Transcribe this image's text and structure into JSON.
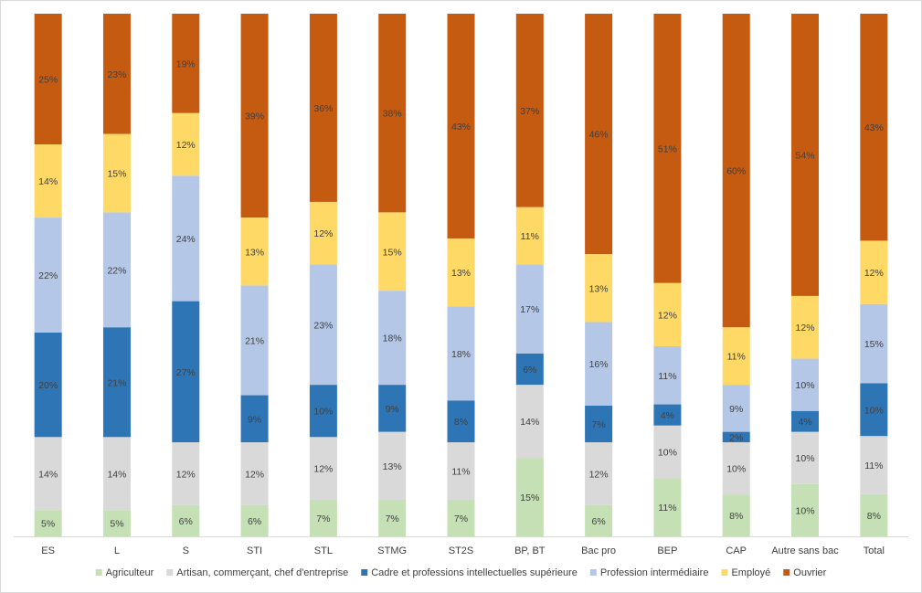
{
  "chart_data": {
    "type": "bar",
    "stacked": "percent",
    "title": "",
    "xlabel": "",
    "ylabel": "",
    "ylim": [
      0,
      100
    ],
    "legend_position": "bottom",
    "categories": [
      "ES",
      "L",
      "S",
      "STI",
      "STL",
      "STMG",
      "ST2S",
      "BP, BT",
      "Bac pro",
      "BEP",
      "CAP",
      "Autre sans bac",
      "Total"
    ],
    "series": [
      {
        "name": "Agriculteur",
        "color": "#c5e0b4",
        "values": [
          5,
          5,
          6,
          6,
          7,
          7,
          7,
          15,
          6,
          11,
          8,
          10,
          8
        ]
      },
      {
        "name": "Artisan, commerçant, chef d'entreprise",
        "color": "#d9d9d9",
        "values": [
          14,
          14,
          12,
          12,
          12,
          13,
          11,
          14,
          12,
          10,
          10,
          10,
          11
        ]
      },
      {
        "name": "Cadre et professions intellectuelles supérieure",
        "color": "#2e75b6",
        "values": [
          20,
          21,
          27,
          9,
          10,
          9,
          8,
          6,
          7,
          4,
          2,
          4,
          10
        ]
      },
      {
        "name": "Profession intermédiaire",
        "color": "#b4c7e7",
        "values": [
          22,
          22,
          24,
          21,
          23,
          18,
          18,
          17,
          16,
          11,
          9,
          10,
          15
        ]
      },
      {
        "name": "Employé",
        "color": "#ffd966",
        "values": [
          14,
          15,
          12,
          13,
          12,
          15,
          13,
          11,
          13,
          12,
          11,
          12,
          12
        ]
      },
      {
        "name": "Ouvrier",
        "color": "#c55a11",
        "values": [
          25,
          23,
          19,
          39,
          36,
          38,
          43,
          37,
          46,
          51,
          60,
          54,
          43
        ]
      }
    ]
  }
}
